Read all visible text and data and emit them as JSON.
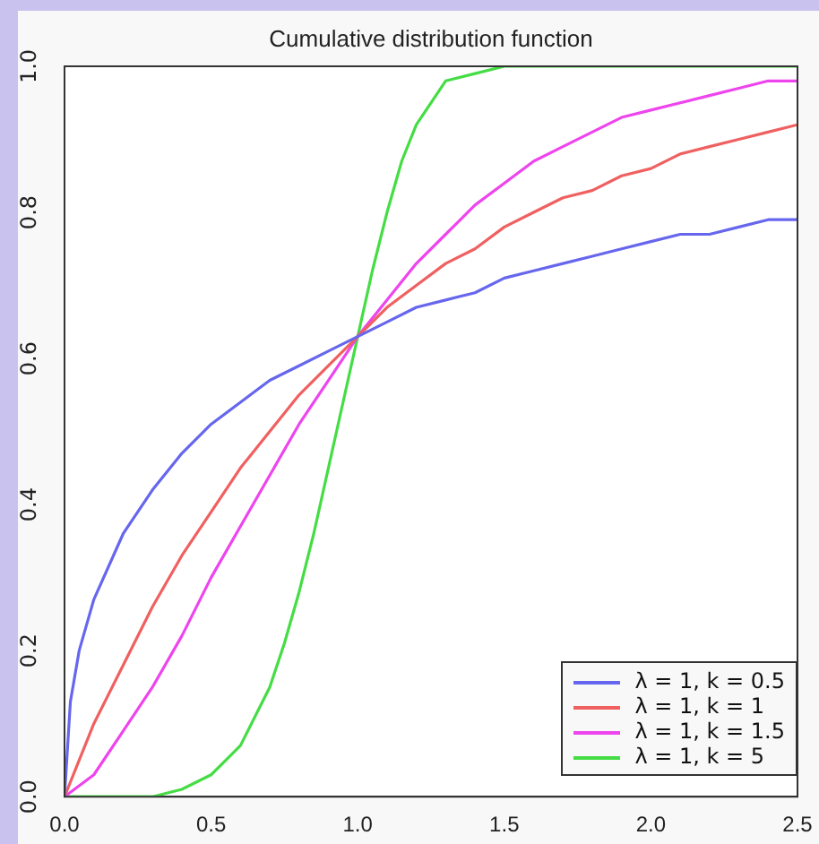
{
  "chart_data": {
    "type": "line",
    "title": "Cumulative distribution function",
    "xlim": [
      0,
      2.5
    ],
    "xticks": [
      {
        "value": 0,
        "label": "0.0"
      },
      {
        "value": 0.5,
        "label": "0.5"
      },
      {
        "value": 1,
        "label": "1.0"
      },
      {
        "value": 1.5,
        "label": "1.5"
      },
      {
        "value": 2,
        "label": "2.0"
      },
      {
        "value": 2.5,
        "label": "2.5"
      }
    ],
    "ylim": [
      0,
      1
    ],
    "yticks": [
      {
        "value": 0,
        "label": "0.0"
      },
      {
        "value": 0.2,
        "label": "0.2"
      },
      {
        "value": 0.4,
        "label": "0.4"
      },
      {
        "value": 0.6,
        "label": "0.6"
      },
      {
        "value": 0.8,
        "label": "0.8"
      },
      {
        "value": 1,
        "label": "1.0"
      }
    ],
    "grid": false,
    "legend": "bottom right",
    "marker": "none",
    "line_style": "solid",
    "series": [
      {
        "name": "λ = 1, k = 0.5",
        "color": "#6666ee",
        "x": [
          0,
          0.02,
          0.05,
          0.1,
          0.2,
          0.3,
          0.4,
          0.5,
          0.6,
          0.7,
          0.8,
          0.9,
          1,
          1.1,
          1.2,
          1.3,
          1.4,
          1.5,
          1.6,
          1.7,
          1.8,
          1.9,
          2,
          2.1,
          2.2,
          2.3,
          2.4,
          2.5
        ],
        "values": [
          0,
          0.13,
          0.2,
          0.27,
          0.36,
          0.42,
          0.47,
          0.51,
          0.54,
          0.57,
          0.59,
          0.61,
          0.63,
          0.65,
          0.67,
          0.68,
          0.69,
          0.71,
          0.72,
          0.73,
          0.74,
          0.75,
          0.76,
          0.77,
          0.77,
          0.78,
          0.79,
          0.79
        ]
      },
      {
        "name": "λ = 1, k = 1",
        "color": "#f06060",
        "x": [
          0,
          0.1,
          0.2,
          0.3,
          0.4,
          0.5,
          0.6,
          0.7,
          0.8,
          0.9,
          1,
          1.1,
          1.2,
          1.3,
          1.4,
          1.5,
          1.6,
          1.7,
          1.8,
          1.9,
          2,
          2.1,
          2.2,
          2.3,
          2.4,
          2.5
        ],
        "values": [
          0,
          0.1,
          0.18,
          0.26,
          0.33,
          0.39,
          0.45,
          0.5,
          0.55,
          0.59,
          0.63,
          0.67,
          0.7,
          0.73,
          0.75,
          0.78,
          0.8,
          0.82,
          0.83,
          0.85,
          0.86,
          0.88,
          0.89,
          0.9,
          0.91,
          0.92
        ]
      },
      {
        "name": "λ = 1, k = 1.5",
        "color": "#ee44ee",
        "x": [
          0,
          0.1,
          0.2,
          0.3,
          0.4,
          0.5,
          0.6,
          0.7,
          0.8,
          0.9,
          1,
          1.1,
          1.2,
          1.3,
          1.4,
          1.5,
          1.6,
          1.7,
          1.8,
          1.9,
          2,
          2.1,
          2.2,
          2.3,
          2.4,
          2.5
        ],
        "values": [
          0,
          0.03,
          0.09,
          0.15,
          0.22,
          0.3,
          0.37,
          0.44,
          0.51,
          0.57,
          0.63,
          0.68,
          0.73,
          0.77,
          0.81,
          0.84,
          0.87,
          0.89,
          0.91,
          0.93,
          0.94,
          0.95,
          0.96,
          0.97,
          0.98,
          0.98
        ]
      },
      {
        "name": "λ = 1, k = 5",
        "color": "#44dd44",
        "x": [
          0,
          0.1,
          0.2,
          0.3,
          0.4,
          0.5,
          0.6,
          0.7,
          0.75,
          0.8,
          0.85,
          0.9,
          0.95,
          1,
          1.05,
          1.1,
          1.15,
          1.2,
          1.3,
          1.4,
          1.5,
          1.6,
          1.8,
          2,
          2.2,
          2.5
        ],
        "values": [
          0,
          0,
          0,
          0,
          0.01,
          0.03,
          0.07,
          0.15,
          0.21,
          0.28,
          0.36,
          0.45,
          0.54,
          0.63,
          0.72,
          0.8,
          0.87,
          0.92,
          0.98,
          0.99,
          1,
          1,
          1,
          1,
          1,
          1
        ]
      }
    ]
  }
}
